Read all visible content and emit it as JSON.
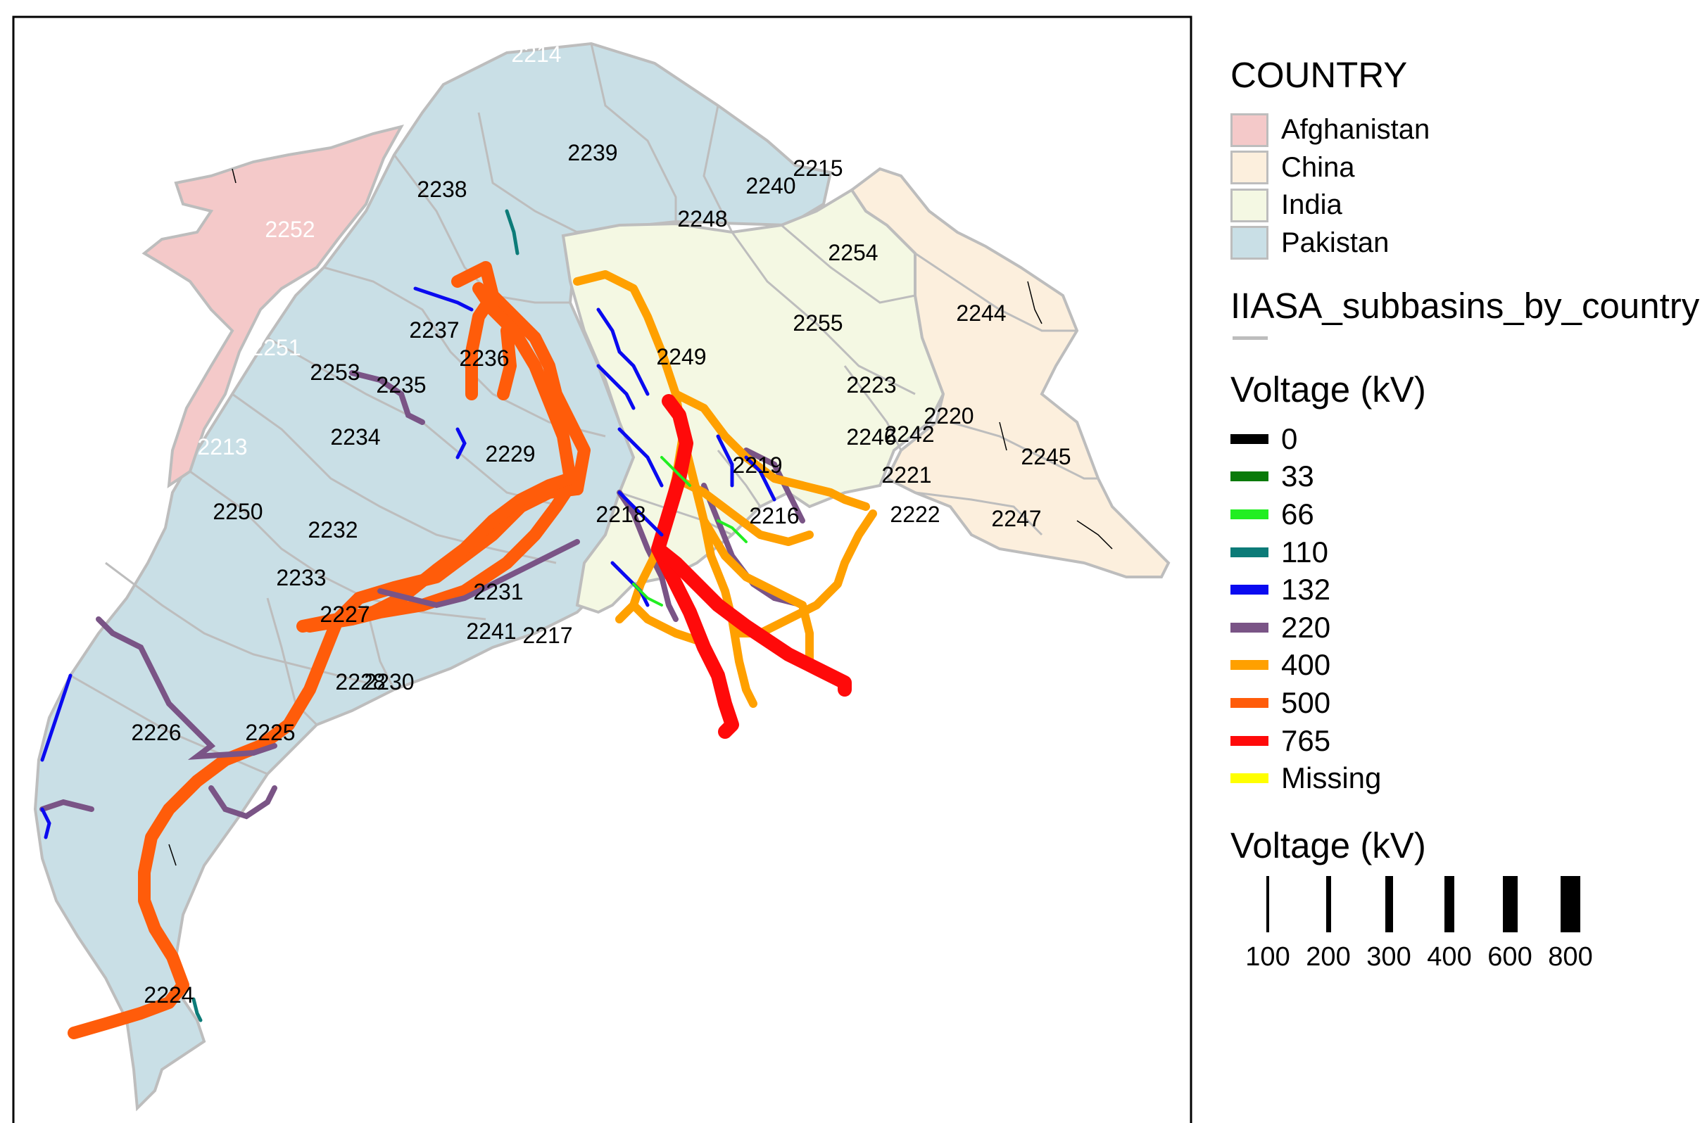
{
  "map": {
    "subbasin_labels": [
      {
        "id": "2214",
        "color": "#ffffff"
      },
      {
        "id": "2239",
        "color": "#000000"
      },
      {
        "id": "2215",
        "color": "#000000"
      },
      {
        "id": "2240",
        "color": "#000000"
      },
      {
        "id": "2238",
        "color": "#000000"
      },
      {
        "id": "2248",
        "color": "#000000"
      },
      {
        "id": "2252",
        "color": "#ffffff"
      },
      {
        "id": "2254",
        "color": "#000000"
      },
      {
        "id": "2244",
        "color": "#000000"
      },
      {
        "id": "2255",
        "color": "#000000"
      },
      {
        "id": "2237",
        "color": "#000000"
      },
      {
        "id": "2251",
        "color": "#ffffff"
      },
      {
        "id": "2236",
        "color": "#000000"
      },
      {
        "id": "2249",
        "color": "#000000"
      },
      {
        "id": "2253",
        "color": "#000000"
      },
      {
        "id": "2235",
        "color": "#000000"
      },
      {
        "id": "2223",
        "color": "#000000"
      },
      {
        "id": "2220",
        "color": "#000000"
      },
      {
        "id": "2213",
        "color": "#ffffff"
      },
      {
        "id": "2234",
        "color": "#000000"
      },
      {
        "id": "2246",
        "color": "#000000"
      },
      {
        "id": "2242",
        "color": "#000000"
      },
      {
        "id": "2245",
        "color": "#000000"
      },
      {
        "id": "2229",
        "color": "#000000"
      },
      {
        "id": "2219",
        "color": "#000000"
      },
      {
        "id": "2221",
        "color": "#000000"
      },
      {
        "id": "2250",
        "color": "#000000"
      },
      {
        "id": "2222",
        "color": "#000000"
      },
      {
        "id": "2247",
        "color": "#000000"
      },
      {
        "id": "2216",
        "color": "#000000"
      },
      {
        "id": "2218",
        "color": "#000000"
      },
      {
        "id": "2232",
        "color": "#000000"
      },
      {
        "id": "2233",
        "color": "#000000"
      },
      {
        "id": "2231",
        "color": "#000000"
      },
      {
        "id": "2227",
        "color": "#000000"
      },
      {
        "id": "2241",
        "color": "#000000"
      },
      {
        "id": "2217",
        "color": "#000000"
      },
      {
        "id": "2228",
        "color": "#000000"
      },
      {
        "id": "2230",
        "color": "#000000"
      },
      {
        "id": "2226",
        "color": "#000000"
      },
      {
        "id": "2225",
        "color": "#000000"
      },
      {
        "id": "2224",
        "color": "#000000"
      }
    ]
  },
  "legend": {
    "country_title": "COUNTRY",
    "countries": [
      {
        "name": "Afghanistan",
        "color": "#f4c9c9"
      },
      {
        "name": "China",
        "color": "#fcefdd"
      },
      {
        "name": "India",
        "color": "#f4f8e3"
      },
      {
        "name": "Pakistan",
        "color": "#c9dfe6"
      }
    ],
    "subbasin_title": "IIASA_subbasins_by_country",
    "subbasin_line_color": "#bdbdbd",
    "voltage_color_title": "Voltage (kV)",
    "voltages": [
      {
        "label": "0",
        "color": "#000000"
      },
      {
        "label": "33",
        "color": "#0a7a0a"
      },
      {
        "label": "66",
        "color": "#22ee22"
      },
      {
        "label": "110",
        "color": "#0c7b78"
      },
      {
        "label": "132",
        "color": "#0a0af0"
      },
      {
        "label": "220",
        "color": "#7a5486"
      },
      {
        "label": "400",
        "color": "#ffa000"
      },
      {
        "label": "500",
        "color": "#ff5c0a"
      },
      {
        "label": "765",
        "color": "#ff0a0a"
      },
      {
        "label": "Missing",
        "color": "#ffff00"
      }
    ],
    "voltage_width_title": "Voltage (kV)",
    "width_keys": [
      {
        "label": "100",
        "value": 100
      },
      {
        "label": "200",
        "value": 200
      },
      {
        "label": "300",
        "value": 300
      },
      {
        "label": "400",
        "value": 400
      },
      {
        "label": "600",
        "value": 600
      },
      {
        "label": "800",
        "value": 800
      }
    ]
  }
}
